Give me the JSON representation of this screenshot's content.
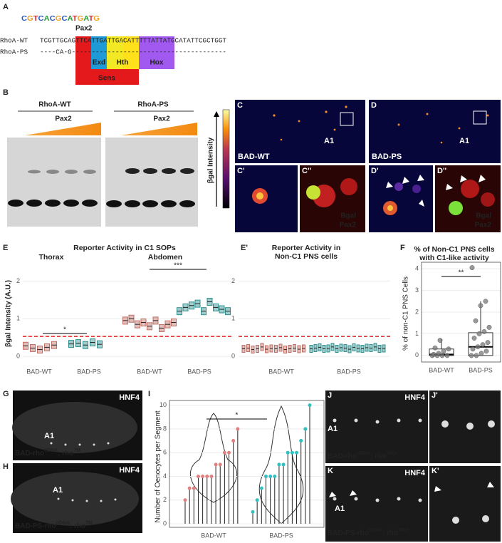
{
  "panel_a": {
    "label": "A",
    "motif_name": "Pax2",
    "logo": "CGTCACGCATGATG",
    "wt_name": "RhoA-WT",
    "wt_seq": "TCGTTGCAGTTCATTGATTGACATTTTTATTATGCATATTCGCTGGT",
    "ps_name": "RhoA-PS",
    "ps_seq": "----CA-G---------------------------------------",
    "sites": [
      "Exd",
      "Hth",
      "Hox",
      "Sens"
    ]
  },
  "panel_b": {
    "label": "B",
    "groups": [
      "RhoA-WT",
      "RhoA-PS"
    ],
    "protein": "Pax2",
    "scale_label": "βgal Intensity"
  },
  "images": {
    "c": {
      "label": "C",
      "a1": "A1",
      "name": "BAD-WT"
    },
    "d": {
      "label": "D",
      "a1": "A1",
      "name": "BAD-PS"
    },
    "c1": {
      "label": "C'"
    },
    "c2": {
      "label": "C''",
      "stains": [
        "Bgal",
        "Pax2"
      ]
    },
    "d1": {
      "label": "D'"
    },
    "d2": {
      "label": "D''",
      "stains": [
        "Bgal",
        "Pax2"
      ]
    }
  },
  "panel_e": {
    "label": "E",
    "title": "Reporter Activity in C1 SOPs",
    "facets": [
      "Thorax",
      "Abdomen"
    ],
    "y_label": "βgal Intensity (A.U.)",
    "categories": [
      "BAD-WT",
      "BAD-PS"
    ],
    "ylim": [
      -0.15,
      2.5
    ],
    "yticks": [
      0,
      1,
      2
    ],
    "threshold": 0.53,
    "thorax": {
      "wt": [
        0.28,
        0.22,
        0.18,
        0.24,
        0.3
      ],
      "ps": [
        0.33,
        0.35,
        0.3,
        0.37,
        0.32
      ],
      "sig": "*"
    },
    "abdomen": {
      "wt": [
        0.95,
        1.0,
        0.85,
        0.9,
        0.8,
        0.95,
        0.75,
        0.85,
        0.9
      ],
      "ps": [
        1.2,
        1.3,
        1.35,
        1.4,
        1.2,
        1.45,
        1.3,
        1.25,
        1.2
      ],
      "sig": "***"
    }
  },
  "panel_e2": {
    "label": "E'",
    "title": [
      "Reporter Activity in",
      "Non-C1 PNS cells"
    ],
    "categories": [
      "BAD-WT",
      "BAD-PS"
    ],
    "ylim": [
      -0.15,
      2.5
    ],
    "yticks": [
      0,
      1,
      2
    ],
    "threshold": 0.53,
    "wt": [
      0.2,
      0.22,
      0.18,
      0.2,
      0.25,
      0.19,
      0.21,
      0.2,
      0.23,
      0.18,
      0.2,
      0.22,
      0.19,
      0.21
    ],
    "ps": [
      0.2,
      0.22,
      0.24,
      0.2,
      0.21,
      0.25,
      0.2,
      0.23,
      0.22,
      0.19,
      0.24,
      0.21,
      0.2,
      0.23,
      0.22,
      0.25,
      0.2,
      0.21
    ]
  },
  "panel_f": {
    "label": "F",
    "title": [
      "% of Non-C1 PNS cells",
      "with C1-like activity"
    ],
    "y_label": "% of non-C1 PNS Cells",
    "categories": [
      "BAD-WT",
      "BAD-PS"
    ],
    "ylim": [
      -0.3,
      4.3
    ],
    "yticks": [
      0,
      1,
      2,
      3,
      4
    ],
    "boxes": [
      {
        "min": 0,
        "q1": 0,
        "median": 0.05,
        "q3": 0.3,
        "max": 0.75
      },
      {
        "min": 0,
        "q1": 0,
        "median": 0.4,
        "q3": 1.05,
        "max": 2.5
      }
    ],
    "points": [
      [
        0,
        0,
        0,
        0,
        0.05,
        0.1,
        0.2,
        0.3,
        0.35,
        0.7
      ],
      [
        0,
        0,
        0.1,
        0.2,
        0.3,
        0.4,
        0.5,
        0.6,
        0.8,
        1.0,
        1.1,
        1.3,
        1.6,
        2.3,
        2.5,
        4.05
      ]
    ],
    "sig": "**"
  },
  "panel_g": {
    "label": "G",
    "marker": "HNF4",
    "a1": "A1",
    "genotype": [
      "BAD-rho",
      "cDNA",
      "; rho",
      "7M"
    ]
  },
  "panel_h": {
    "label": "H",
    "marker": "HNF4",
    "a1": "A1",
    "genotype": [
      "BAD-PS-rho",
      "cDNA",
      "; rho",
      "7M"
    ]
  },
  "panel_i": {
    "label": "I",
    "y_label": "Number of Oenocytes per Segment",
    "categories": [
      "BAD-WT",
      "BAD-PS"
    ],
    "ylim": [
      -0.3,
      10.4
    ],
    "yticks": [
      0,
      2,
      4,
      6,
      8,
      10
    ],
    "points": [
      [
        2,
        3,
        3,
        4,
        4,
        4,
        4,
        5,
        5,
        6,
        6,
        7,
        8
      ],
      [
        1,
        2,
        3,
        4,
        4,
        4,
        5,
        5,
        6,
        6,
        6,
        7,
        8,
        10
      ]
    ],
    "sig": "*"
  },
  "panel_j": {
    "labels": [
      "J",
      "J'"
    ],
    "marker": "HNF4",
    "a1": "A1",
    "genotype": [
      "BAD-rho",
      "cDNA",
      "; rho",
      "7M/+"
    ]
  },
  "panel_k": {
    "labels": [
      "K",
      "K'"
    ],
    "marker": "HNF4",
    "a1": "A1",
    "genotype": [
      "BAD-PS-rho",
      "cDNA",
      "; rho",
      "7M/+"
    ]
  }
}
